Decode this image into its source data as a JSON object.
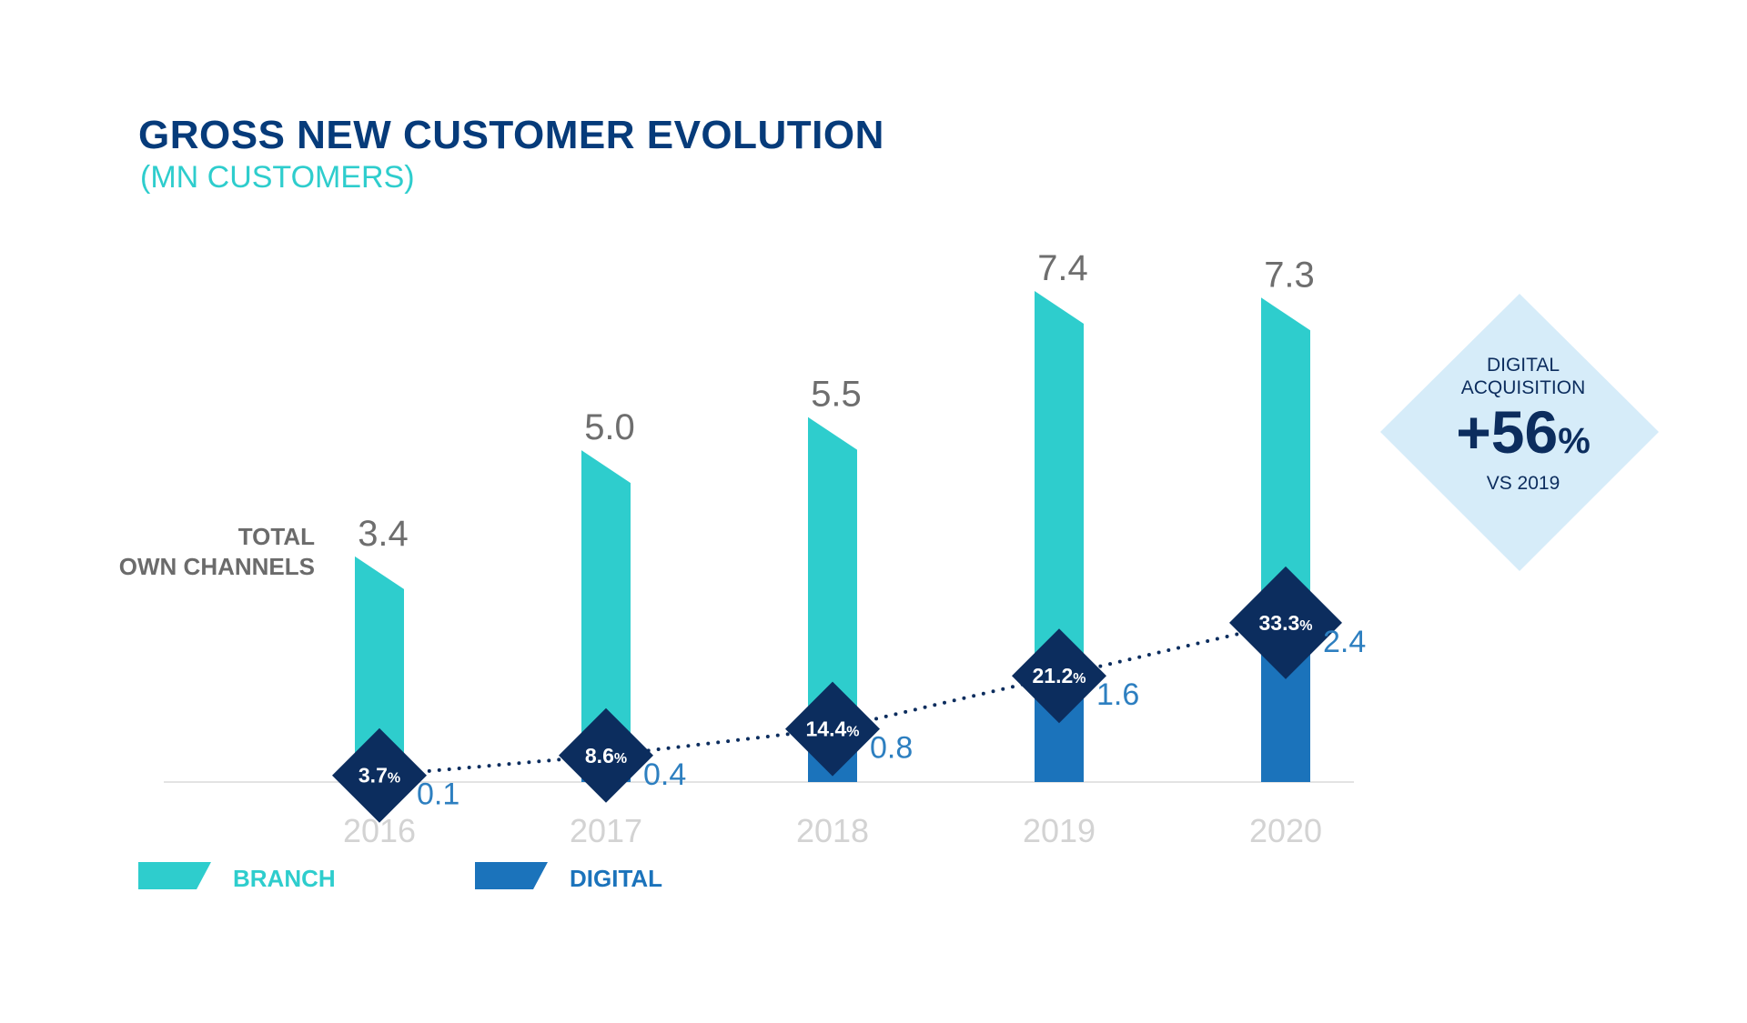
{
  "header": {
    "title": "GROSS NEW CUSTOMER EVOLUTION",
    "subtitle": "(MN CUSTOMERS)"
  },
  "total_label": {
    "line1": "TOTAL",
    "line2": "OWN CHANNELS"
  },
  "legend": {
    "branch": "BRANCH",
    "digital": "DIGITAL"
  },
  "callout": {
    "line1": "DIGITAL",
    "line2": "ACQUISITION",
    "value": "+56",
    "unit": "%",
    "line3": "VS 2019"
  },
  "colors": {
    "branch": "#2ecdcd",
    "digital": "#1b73bb",
    "marker": "#0c2d5e",
    "callout_bg": "#d6ecf9",
    "title": "#063b7a"
  },
  "chart_data": {
    "type": "bar",
    "categories": [
      "2016",
      "2017",
      "2018",
      "2019",
      "2020"
    ],
    "stacked": true,
    "series": [
      {
        "name": "DIGITAL",
        "values": [
          0.1,
          0.4,
          0.8,
          1.6,
          2.4
        ]
      },
      {
        "name": "BRANCH",
        "values": [
          3.3,
          4.6,
          4.7,
          5.8,
          4.9
        ]
      }
    ],
    "totals": [
      3.4,
      5.0,
      5.5,
      7.4,
      7.3
    ],
    "total_labels": [
      "3.4",
      "5.0",
      "5.5",
      "7.4",
      "7.3"
    ],
    "digital_labels": [
      "0.1",
      "0.4",
      "0.8",
      "1.6",
      "2.4"
    ],
    "digital_share": [
      3.7,
      8.6,
      14.4,
      21.2,
      33.3
    ],
    "digital_share_labels": [
      "3.7",
      "8.6",
      "14.4",
      "21.2",
      "33.3"
    ],
    "digital_share_unit": "%",
    "ylim": [
      0,
      7.4
    ],
    "grid": false,
    "legend_position": "bottom-left"
  }
}
